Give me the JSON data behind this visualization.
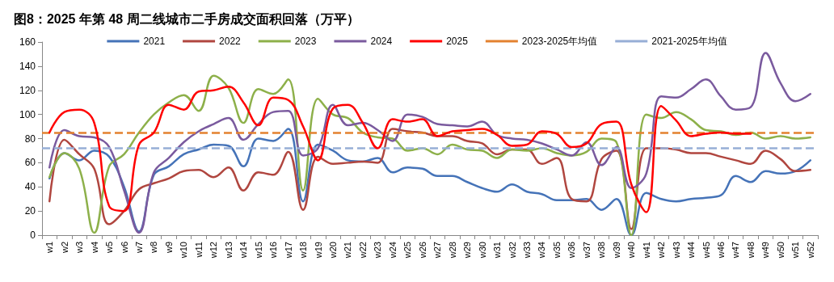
{
  "chart_data": {
    "type": "line",
    "title": "图8：2025 年第 48 周二线城市二手房成交面积回落（万平）",
    "categories": [
      "w1",
      "w2",
      "w3",
      "w4",
      "w5",
      "w6",
      "w7",
      "w8",
      "w9",
      "w10",
      "w11",
      "w12",
      "w13",
      "w14",
      "w15",
      "w16",
      "w17",
      "w18",
      "w19",
      "w20",
      "w21",
      "w22",
      "w23",
      "w24",
      "w25",
      "w26",
      "w27",
      "w28",
      "w29",
      "w30",
      "w31",
      "w32",
      "w33",
      "w34",
      "w35",
      "w36",
      "w37",
      "w38",
      "w39",
      "w40",
      "w41",
      "w42",
      "w43",
      "w44",
      "w45",
      "w46",
      "w47",
      "w48",
      "w49",
      "w50",
      "w51",
      "w52"
    ],
    "series": [
      {
        "name": "2021",
        "color": "#4573b8",
        "values": [
          47,
          68,
          62,
          70,
          65,
          40,
          3,
          50,
          57,
          67,
          71,
          75,
          74,
          57,
          80,
          78,
          88,
          28,
          75,
          70,
          62,
          61,
          64,
          52,
          56,
          55,
          49,
          49,
          44,
          39,
          36,
          42,
          36,
          34,
          29,
          29,
          30,
          21,
          30,
          0,
          35,
          30,
          28,
          30,
          31,
          33,
          49,
          44,
          53,
          51,
          53,
          62
        ]
      },
      {
        "name": "2022",
        "color": "#b0463f",
        "values": [
          28,
          79,
          67,
          55,
          9,
          20,
          38,
          43,
          47,
          53,
          54,
          48,
          56,
          37,
          52,
          50,
          69,
          21,
          65,
          59,
          60,
          61,
          60,
          88,
          86,
          85,
          82,
          82,
          78,
          76,
          67,
          71,
          71,
          59,
          64,
          30,
          28,
          63,
          70,
          5,
          72,
          72,
          71,
          68,
          68,
          65,
          62,
          59,
          70,
          63,
          53,
          54
        ]
      },
      {
        "name": "2023",
        "color": "#8db04a",
        "values": [
          48,
          68,
          55,
          2,
          57,
          67,
          85,
          100,
          110,
          116,
          103,
          132,
          122,
          93,
          121,
          117,
          129,
          37,
          113,
          100,
          97,
          85,
          81,
          80,
          70,
          72,
          67,
          75,
          71,
          70,
          64,
          71,
          70,
          72,
          68,
          66,
          69,
          80,
          77,
          0,
          100,
          97,
          102,
          96,
          87,
          86,
          83,
          85,
          80,
          82,
          80,
          81
        ]
      },
      {
        "name": "2024",
        "color": "#7a5a9e",
        "values": [
          56,
          87,
          82,
          81,
          73,
          37,
          2,
          52,
          64,
          77,
          86,
          92,
          97,
          79,
          92,
          102,
          103,
          66,
          72,
          108,
          91,
          93,
          87,
          78,
          100,
          98,
          92,
          91,
          90,
          94,
          83,
          80,
          79,
          76,
          71,
          66,
          77,
          58,
          73,
          39,
          51,
          115,
          114,
          121,
          129,
          115,
          104,
          106,
          151,
          126,
          111,
          117
        ]
      },
      {
        "name": "2025",
        "color": "#ff0000",
        "values": [
          85,
          102,
          104,
          93,
          24,
          20,
          75,
          85,
          108,
          104,
          119,
          120,
          123,
          110,
          91,
          114,
          112,
          90,
          62,
          105,
          108,
          93,
          72,
          96,
          94,
          96,
          82,
          86,
          87,
          88,
          83,
          74,
          75,
          86,
          84,
          73,
          76,
          92,
          94,
          42,
          19,
          107,
          95,
          82,
          84,
          85,
          84,
          84,
          null,
          null,
          null,
          null
        ]
      }
    ],
    "ref_lines": [
      {
        "axis": "y",
        "value": 85,
        "label": "2023-2025年均值",
        "color": "#e3812f",
        "line_style": "dashed"
      },
      {
        "axis": "y",
        "value": 72,
        "label": "2021-2025年均值",
        "color": "#97aed6",
        "line_style": "dashed"
      }
    ],
    "ylim": [
      0,
      160
    ],
    "yticks": [
      0,
      20,
      40,
      60,
      80,
      100,
      120,
      140,
      160
    ],
    "grid": false,
    "legend": "top",
    "marker": "none",
    "line_style": "solid"
  }
}
